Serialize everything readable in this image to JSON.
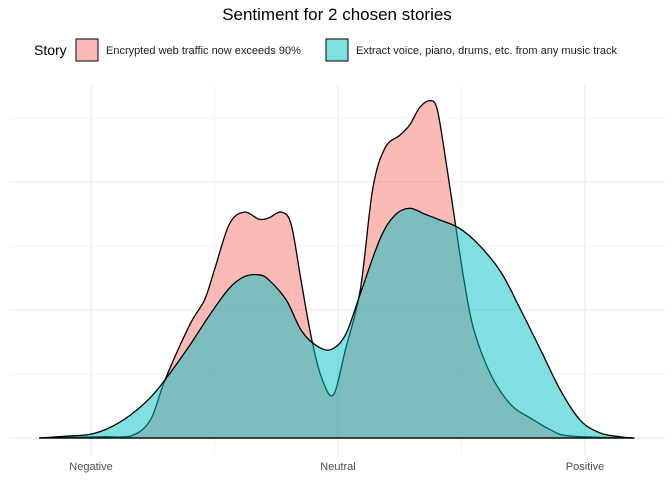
{
  "chart_data": {
    "type": "area",
    "subtype": "density",
    "title": "Sentiment for 2 chosen stories",
    "xlabel": "",
    "ylabel": "",
    "legend_title": "Story",
    "legend_position": "top",
    "grid": true,
    "x_ticks": [
      {
        "value": -1,
        "label": "Negative"
      },
      {
        "value": 0,
        "label": "Neutral"
      },
      {
        "value": 1,
        "label": "Positive"
      }
    ],
    "xlim": [
      -1.3,
      1.33
    ],
    "ylim": [
      0,
      5.5
    ],
    "y_tick_labels_shown": false,
    "series": [
      {
        "name": "Encrypted web traffic now exceeds 90%",
        "color": "#F8766D",
        "opacity": 0.5,
        "x": [
          -1.21,
          -0.96,
          -0.84,
          -0.76,
          -0.7,
          -0.6,
          -0.54,
          -0.5,
          -0.44,
          -0.38,
          -0.32,
          -0.28,
          -0.23,
          -0.19,
          -0.15,
          -0.11,
          -0.07,
          -0.02,
          0.03,
          0.09,
          0.14,
          0.19,
          0.25,
          0.29,
          0.33,
          0.37,
          0.4,
          0.43,
          0.47,
          0.51,
          0.55,
          0.62,
          0.7,
          0.78,
          0.86,
          0.94,
          1.2
        ],
        "y": [
          0,
          0.02,
          0.03,
          0.28,
          0.91,
          1.77,
          2.16,
          2.63,
          3.34,
          3.53,
          3.42,
          3.44,
          3.53,
          3.34,
          2.47,
          1.61,
          0.98,
          0.67,
          1.38,
          2.31,
          3.88,
          4.53,
          4.73,
          4.89,
          5.16,
          5.27,
          5.16,
          4.5,
          3.48,
          2.47,
          1.69,
          0.98,
          0.52,
          0.31,
          0.13,
          0.03,
          0
        ]
      },
      {
        "name": "Extract voice, piano, drums, etc. from any music track",
        "color": "#00BFC4",
        "opacity": 0.5,
        "x": [
          -1.21,
          -1.09,
          -1.0,
          -0.92,
          -0.84,
          -0.76,
          -0.7,
          -0.6,
          -0.52,
          -0.44,
          -0.38,
          -0.32,
          -0.28,
          -0.21,
          -0.15,
          -0.09,
          -0.03,
          0.03,
          0.09,
          0.17,
          0.23,
          0.29,
          0.35,
          0.41,
          0.49,
          0.57,
          0.66,
          0.74,
          0.82,
          0.9,
          0.98,
          1.06,
          1.14,
          1.2
        ],
        "y": [
          0,
          0.03,
          0.06,
          0.17,
          0.36,
          0.63,
          0.91,
          1.45,
          1.92,
          2.34,
          2.52,
          2.55,
          2.47,
          2.16,
          1.69,
          1.45,
          1.38,
          1.61,
          2.25,
          3.11,
          3.48,
          3.59,
          3.5,
          3.41,
          3.28,
          3.02,
          2.59,
          2.0,
          1.38,
          0.75,
          0.28,
          0.08,
          0.02,
          0
        ]
      }
    ]
  }
}
